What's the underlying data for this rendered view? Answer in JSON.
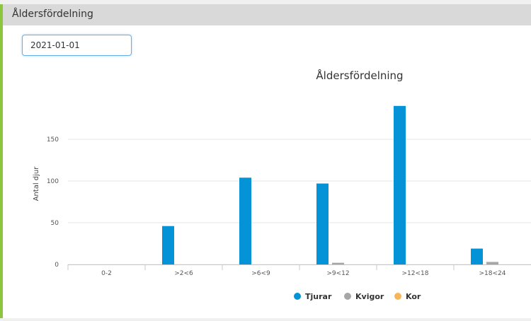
{
  "panel": {
    "title": "Åldersfördelning"
  },
  "date_input": {
    "value": "2021-01-01"
  },
  "colors": {
    "accent": "#8cc63f",
    "tjurar": "#0393d6",
    "kvigor": "#a6a6a6",
    "kor": "#f7b55a"
  },
  "chart_data": {
    "type": "bar",
    "title": "Åldersfördelning",
    "xlabel": "",
    "ylabel": "Antal djur",
    "ylim": [
      0,
      200
    ],
    "yticks": [
      0,
      50,
      100,
      150
    ],
    "grid": true,
    "legend_position": "bottom",
    "categories": [
      "0-2",
      ">2<6",
      ">6<9",
      ">9<12",
      ">12<18",
      ">18<24"
    ],
    "series": [
      {
        "name": "Tjurar",
        "color": "#0393d6",
        "values": [
          0,
          46,
          104,
          97,
          190,
          19
        ]
      },
      {
        "name": "Kvigor",
        "color": "#a6a6a6",
        "values": [
          0,
          0,
          0,
          2,
          0,
          3
        ]
      },
      {
        "name": "Kor",
        "color": "#f7b55a",
        "values": [
          0,
          0,
          0,
          0,
          0,
          0
        ]
      }
    ]
  }
}
